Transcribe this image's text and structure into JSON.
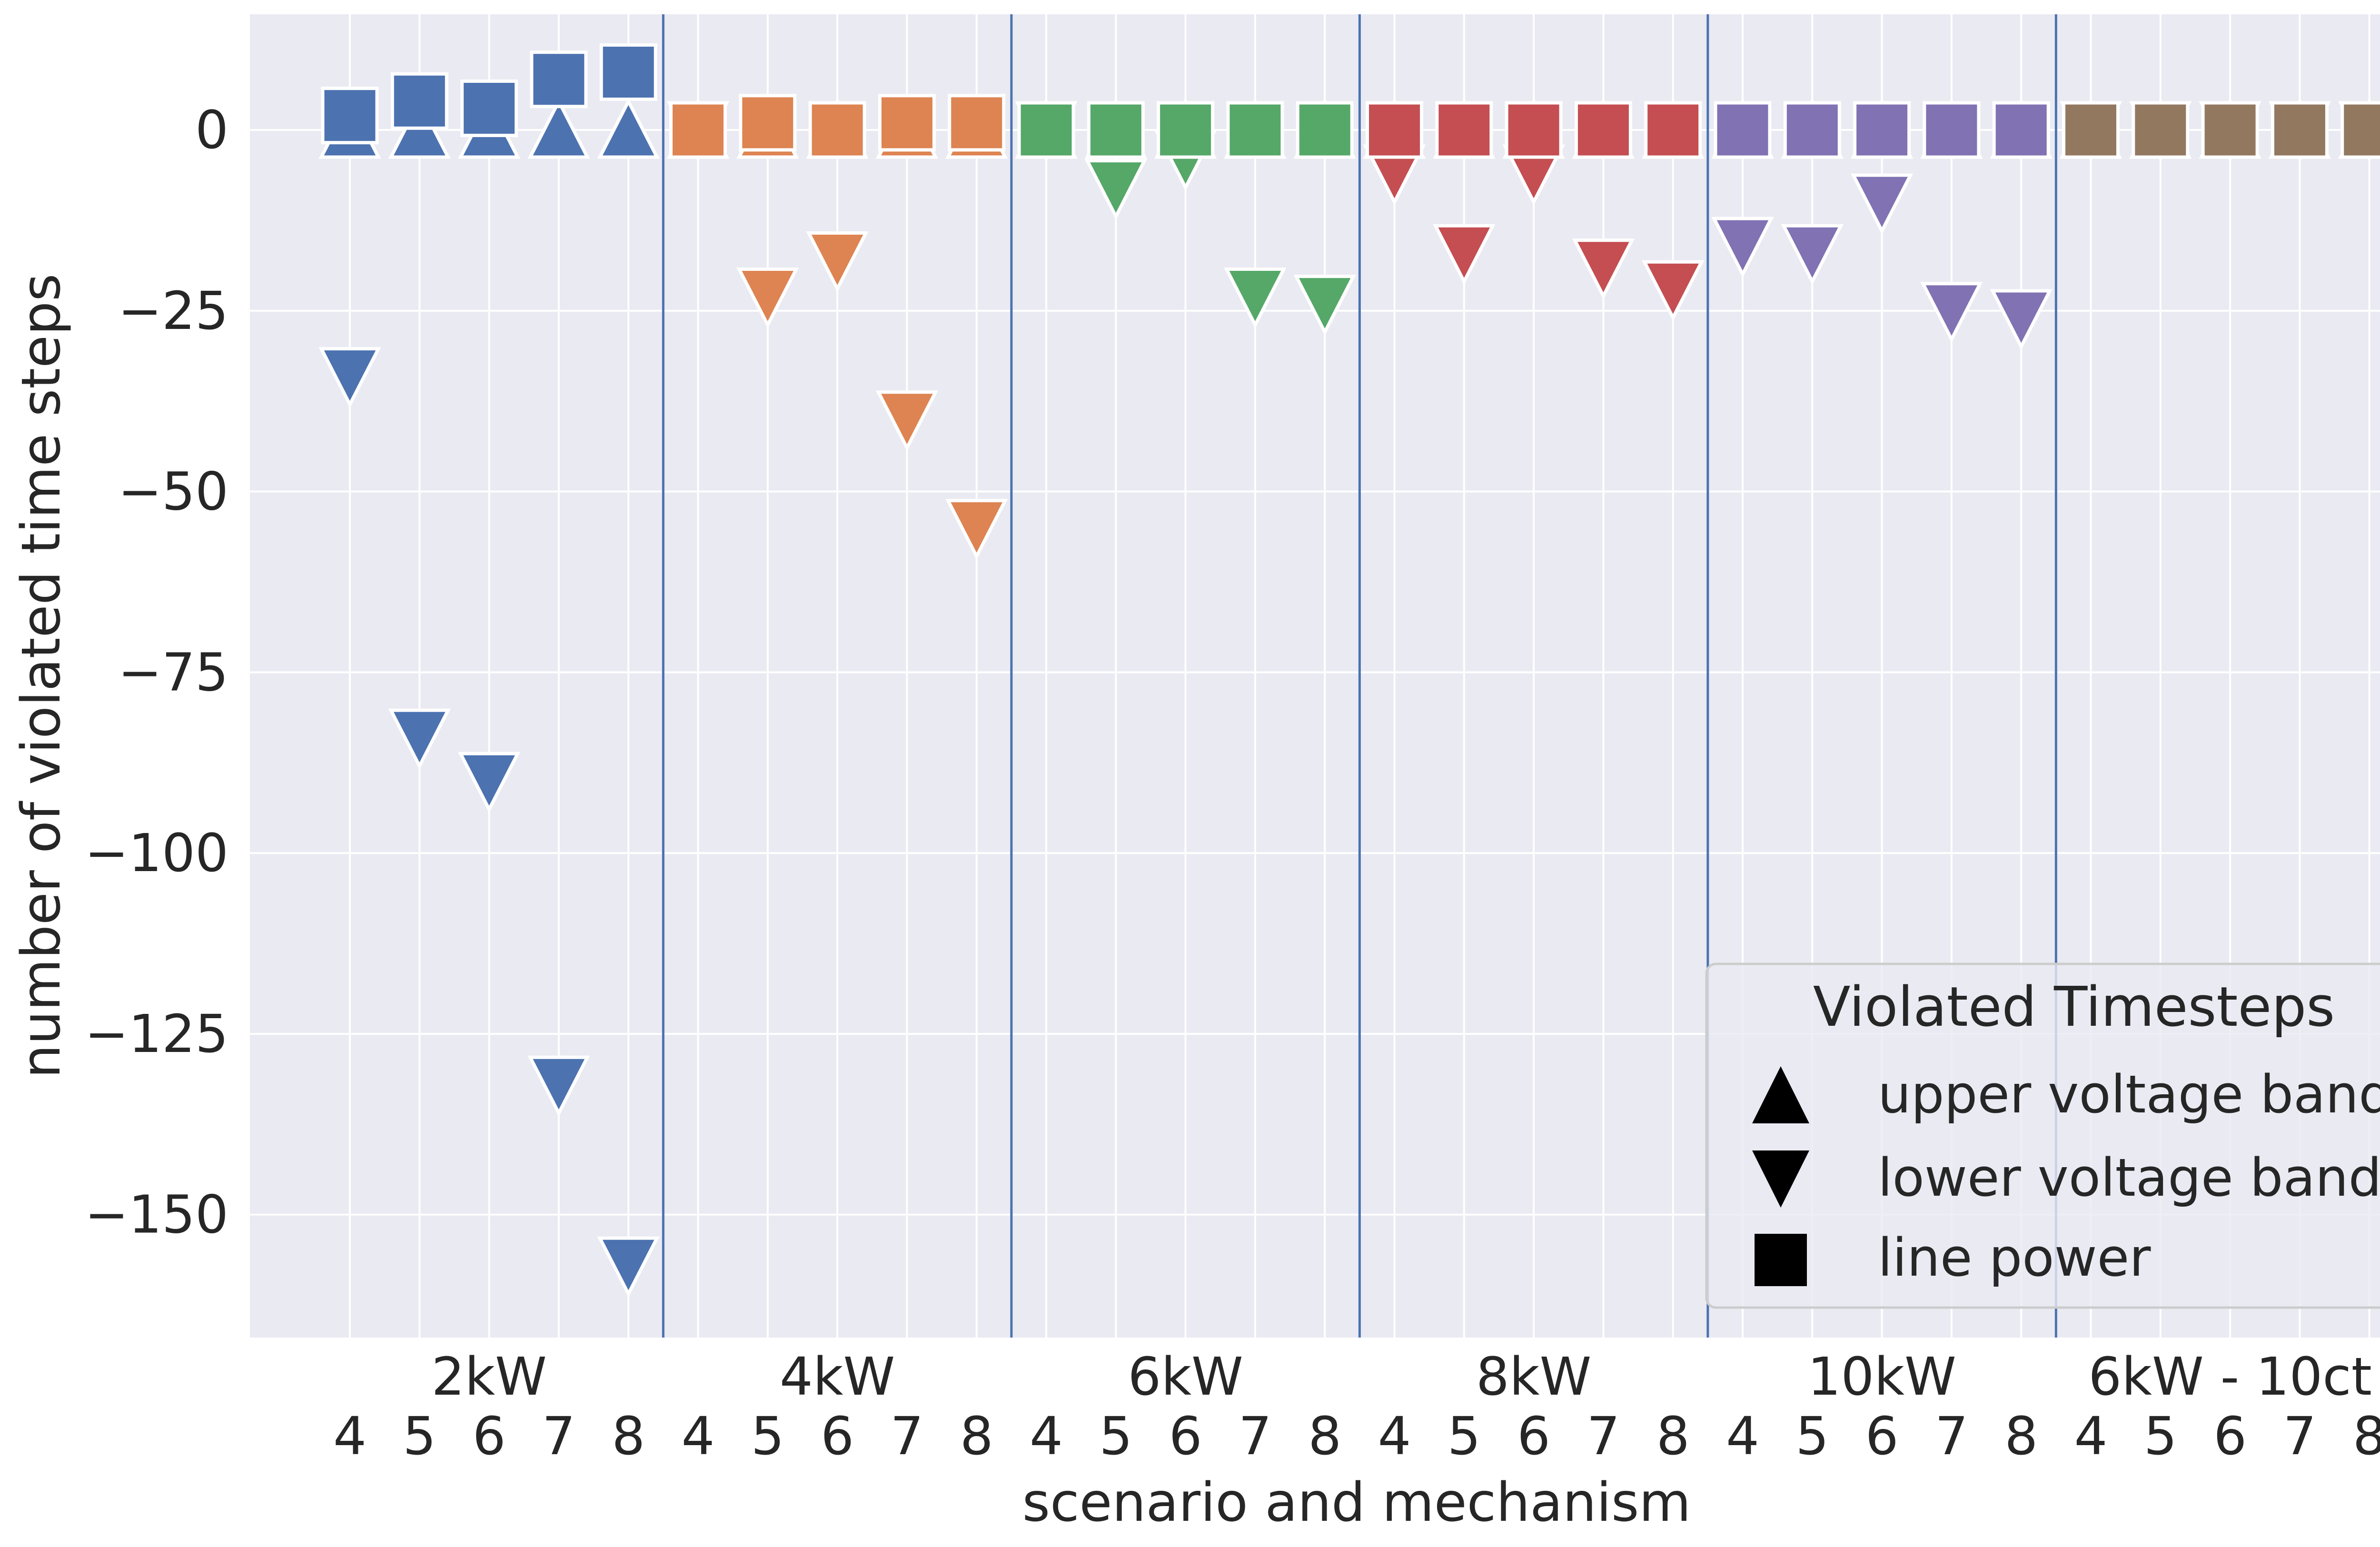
{
  "chart_data": {
    "type": "scatter",
    "title": "",
    "xlabel": "scenario and mechanism",
    "ylabel": "number of violated time steps",
    "ylim": [
      -167,
      16
    ],
    "yticks": [
      0,
      -25,
      -50,
      -75,
      -100,
      -125,
      -150
    ],
    "ytick_labels": [
      "0",
      "−25",
      "−50",
      "−75",
      "−100",
      "−125",
      "−150"
    ],
    "grid": true,
    "mechanisms": [
      "4",
      "5",
      "6",
      "7",
      "8"
    ],
    "scenarios": [
      "2kW",
      "4kW",
      "6kW",
      "8kW",
      "10kW",
      "6kW - 10ct"
    ],
    "scenario_colors": [
      "#4c72b0",
      "#dd8452",
      "#55a868",
      "#c44e52",
      "#8172b3",
      "#937860"
    ],
    "series": [
      {
        "name": "upper voltage band",
        "marker": "triangle-up",
        "values": [
          [
            0,
            0,
            0,
            0,
            0
          ],
          [
            0,
            0,
            0,
            0,
            0
          ],
          [
            0,
            0,
            0,
            0,
            0
          ],
          [
            0,
            0,
            0,
            0,
            0
          ],
          [
            0,
            0,
            0,
            0,
            0
          ],
          [
            0,
            0,
            0,
            0,
            0
          ]
        ]
      },
      {
        "name": "lower voltage band",
        "marker": "triangle-down",
        "values": [
          [
            -34,
            -84,
            -90,
            -132,
            -157
          ],
          [
            0,
            -23,
            -18,
            -40,
            -55
          ],
          [
            0,
            -8,
            -4,
            -23,
            -24
          ],
          [
            -6,
            -17,
            -6,
            -19,
            -22
          ],
          [
            -16,
            -17,
            -10,
            -25,
            -26
          ],
          [
            0,
            0,
            0,
            0,
            0
          ]
        ]
      },
      {
        "name": "line power",
        "marker": "square",
        "values": [
          [
            2,
            4,
            3,
            7,
            8
          ],
          [
            0,
            1,
            0,
            1,
            1
          ],
          [
            0,
            0,
            0,
            0,
            0
          ],
          [
            0,
            0,
            0,
            0,
            0
          ],
          [
            0,
            0,
            0,
            0,
            0
          ],
          [
            0,
            0,
            0,
            0,
            0
          ]
        ]
      }
    ],
    "legend": {
      "title": "Violated Timesteps",
      "position": "lower-right",
      "entries": [
        "upper voltage band",
        "lower voltage band",
        "line power"
      ]
    }
  }
}
